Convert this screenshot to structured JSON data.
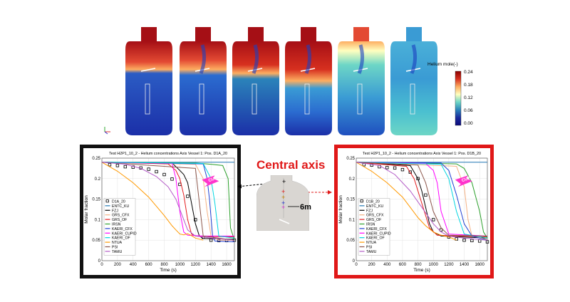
{
  "colorbar": {
    "title": "Helium mole(-)",
    "ticks": [
      "0.24",
      "0.18",
      "0.12",
      "0.06",
      "0.00"
    ],
    "colors": [
      "#8b0000",
      "#d7301f",
      "#fdae61",
      "#ffffbf",
      "#6dd6c6",
      "#2b83ba",
      "#1a2a9c",
      "#0b0b7a"
    ]
  },
  "central_axis": {
    "title": "Central axis",
    "distance_label": "6m"
  },
  "chart_data": [
    {
      "type": "line",
      "title": "Test H2P1_10_2 - Helium concentrations Axis Vessel 1: Pos. D1A_20",
      "xlabel": "Time (s)",
      "ylabel": "Molar fraction",
      "xlim": [
        0,
        1700
      ],
      "ylim": [
        0,
        0.25
      ],
      "xticks": [
        0,
        200,
        400,
        600,
        800,
        1000,
        1200,
        1400,
        1600
      ],
      "yticks": [
        0,
        0.05,
        0.1,
        0.15,
        0.2,
        0.25
      ],
      "annotation": "CUPID",
      "border_color": "#111111",
      "legend_placement": "left",
      "series": [
        {
          "name": "D1A_20",
          "color": "#000000",
          "marker": "square",
          "x": [
            100,
            200,
            300,
            400,
            500,
            600,
            700,
            800,
            900,
            1000,
            1100,
            1200,
            1300,
            1400,
            1500,
            1600,
            1700
          ],
          "y": [
            0.234,
            0.232,
            0.229,
            0.228,
            0.226,
            0.223,
            0.217,
            0.21,
            0.199,
            0.186,
            0.157,
            0.1,
            0.057,
            0.05,
            0.049,
            0.049,
            0.05
          ]
        },
        {
          "name": "ENTC_KU",
          "color": "#1f77b4",
          "x": [
            0,
            1700
          ],
          "y": [
            0.24,
            0.24
          ]
        },
        {
          "name": "FZJ",
          "color": "#000000",
          "x": [
            0,
            900,
            1000,
            1050,
            1100,
            1150,
            1200,
            1250,
            1300,
            1700
          ],
          "y": [
            0.24,
            0.238,
            0.22,
            0.21,
            0.19,
            0.14,
            0.09,
            0.06,
            0.054,
            0.052
          ]
        },
        {
          "name": "GRS_CFX",
          "color": "#f4b183",
          "x": [
            0,
            1200,
            1300,
            1350,
            1400,
            1500,
            1700
          ],
          "y": [
            0.24,
            0.235,
            0.2,
            0.12,
            0.06,
            0.05,
            0.05
          ]
        },
        {
          "name": "GRS_OF",
          "color": "#e41a1c",
          "x": [
            0,
            850,
            950,
            1000,
            1050,
            1100,
            1150,
            1200,
            1700
          ],
          "y": [
            0.24,
            0.236,
            0.22,
            0.2,
            0.16,
            0.1,
            0.065,
            0.06,
            0.058
          ]
        },
        {
          "name": "IRSN",
          "color": "#2ca02c",
          "x": [
            0,
            1200,
            1400,
            1550,
            1620,
            1650,
            1700
          ],
          "y": [
            0.24,
            0.238,
            0.235,
            0.232,
            0.2,
            0.08,
            0.05
          ]
        },
        {
          "name": "KAERI_CFX",
          "color": "#1f3fd1",
          "x": [
            0,
            1300,
            1350,
            1380,
            1420,
            1450,
            1700
          ],
          "y": [
            0.24,
            0.236,
            0.2,
            0.15,
            0.06,
            0.048,
            0.046
          ]
        },
        {
          "name": "KAERI_CUPID",
          "color": "#ff00ff",
          "x": [
            0,
            900,
            950,
            1000,
            1050,
            1100,
            1300,
            1700
          ],
          "y": [
            0.24,
            0.237,
            0.2,
            0.12,
            0.07,
            0.062,
            0.06,
            0.06
          ]
        },
        {
          "name": "KAERI_OF",
          "color": "#00d5e0",
          "x": [
            0,
            1300,
            1400,
            1450,
            1500,
            1700
          ],
          "y": [
            0.24,
            0.237,
            0.2,
            0.14,
            0.06,
            0.055
          ]
        },
        {
          "name": "NTUA",
          "color": "#ff9900",
          "x": [
            0,
            200,
            400,
            600,
            800,
            900,
            950,
            1000,
            1050,
            1100,
            1150,
            1200,
            1300
          ],
          "y": [
            0.24,
            0.218,
            0.19,
            0.155,
            0.11,
            0.085,
            0.075,
            0.065,
            0.063,
            0.066,
            0.061,
            0.055,
            0.05
          ]
        },
        {
          "name": "PSI",
          "color": "#8c564b",
          "x": [
            0,
            1200,
            1300,
            1700
          ],
          "y": [
            0.24,
            0.225,
            0.06,
            0.05
          ]
        },
        {
          "name": "TAMU",
          "color": "#b45cc7",
          "x": [
            0,
            300,
            500,
            700,
            850,
            950,
            1050,
            1100,
            1200,
            1400,
            1700
          ],
          "y": [
            0.24,
            0.235,
            0.225,
            0.205,
            0.18,
            0.15,
            0.1,
            0.075,
            0.06,
            0.055,
            0.05
          ]
        }
      ]
    },
    {
      "type": "line",
      "title": "Test H2P1_10_2 - Helium concentrations Axis Vessel 1: Pos. D1B_20",
      "xlabel": "Time (s)",
      "ylabel": "Molar fraction",
      "xlim": [
        0,
        1700
      ],
      "ylim": [
        0,
        0.25
      ],
      "xticks": [
        0,
        200,
        400,
        600,
        800,
        1000,
        1200,
        1400,
        1600
      ],
      "yticks": [
        0,
        0.05,
        0.1,
        0.15,
        0.2,
        0.25
      ],
      "annotation": "CUPID",
      "border_color": "#e01818",
      "legend_placement": "left",
      "series": [
        {
          "name": "D1B_20",
          "color": "#000000",
          "marker": "square",
          "x": [
            100,
            200,
            300,
            400,
            500,
            600,
            700,
            800,
            900,
            1000,
            1100,
            1200,
            1300,
            1400,
            1500,
            1600,
            1700
          ],
          "y": [
            0.234,
            0.233,
            0.229,
            0.227,
            0.226,
            0.222,
            0.216,
            0.2,
            0.16,
            0.1,
            0.075,
            0.058,
            0.053,
            0.05,
            0.049,
            0.048,
            0.046
          ]
        },
        {
          "name": "ENTC_KU",
          "color": "#1f77b4",
          "x": [
            0,
            1700
          ],
          "y": [
            0.24,
            0.24
          ]
        },
        {
          "name": "FZJ",
          "color": "#000000",
          "x": [
            0,
            700,
            800,
            850,
            900,
            950,
            1000,
            1100,
            1700
          ],
          "y": [
            0.24,
            0.232,
            0.2,
            0.17,
            0.13,
            0.09,
            0.07,
            0.06,
            0.055
          ]
        },
        {
          "name": "GRS_CFX",
          "color": "#f4b183",
          "x": [
            0,
            1300,
            1400,
            1450,
            1500,
            1700
          ],
          "y": [
            0.24,
            0.23,
            0.18,
            0.1,
            0.06,
            0.052
          ]
        },
        {
          "name": "GRS_OF",
          "color": "#e41a1c",
          "x": [
            0,
            650,
            750,
            850,
            950,
            1050,
            1700
          ],
          "y": [
            0.24,
            0.23,
            0.2,
            0.14,
            0.08,
            0.062,
            0.058
          ]
        },
        {
          "name": "IRSN",
          "color": "#2ca02c",
          "x": [
            0,
            1300,
            1400,
            1500,
            1600,
            1650,
            1700
          ],
          "y": [
            0.24,
            0.236,
            0.225,
            0.19,
            0.12,
            0.07,
            0.055
          ]
        },
        {
          "name": "KAERI_CFX",
          "color": "#1f3fd1",
          "x": [
            0,
            1100,
            1200,
            1300,
            1400,
            1500,
            1700
          ],
          "y": [
            0.24,
            0.238,
            0.22,
            0.16,
            0.09,
            0.06,
            0.05
          ]
        },
        {
          "name": "KAERI_CUPID",
          "color": "#ff00ff",
          "x": [
            0,
            900,
            1000,
            1050,
            1100,
            1200,
            1700
          ],
          "y": [
            0.24,
            0.237,
            0.22,
            0.19,
            0.12,
            0.065,
            0.06
          ]
        },
        {
          "name": "KAERI_OF",
          "color": "#00d5e0",
          "x": [
            0,
            1100,
            1200,
            1300,
            1400,
            1700
          ],
          "y": [
            0.24,
            0.235,
            0.2,
            0.12,
            0.065,
            0.055
          ]
        },
        {
          "name": "NTUA",
          "color": "#ff9900",
          "x": [
            0,
            200,
            400,
            600,
            700,
            800,
            900,
            1000,
            1100,
            1200,
            1300
          ],
          "y": [
            0.24,
            0.218,
            0.19,
            0.155,
            0.13,
            0.105,
            0.085,
            0.07,
            0.062,
            0.058,
            0.05
          ]
        },
        {
          "name": "PSI",
          "color": "#8c564b",
          "x": [
            0,
            800,
            900,
            1000,
            1100,
            1200,
            1700
          ],
          "y": [
            0.24,
            0.233,
            0.19,
            0.12,
            0.08,
            0.062,
            0.06
          ]
        },
        {
          "name": "TAMU",
          "color": "#b45cc7",
          "x": [
            0,
            300,
            500,
            700,
            850,
            1000,
            1100,
            1200,
            1400,
            1700
          ],
          "y": [
            0.24,
            0.232,
            0.21,
            0.17,
            0.13,
            0.09,
            0.07,
            0.06,
            0.055,
            0.05
          ]
        }
      ]
    }
  ]
}
